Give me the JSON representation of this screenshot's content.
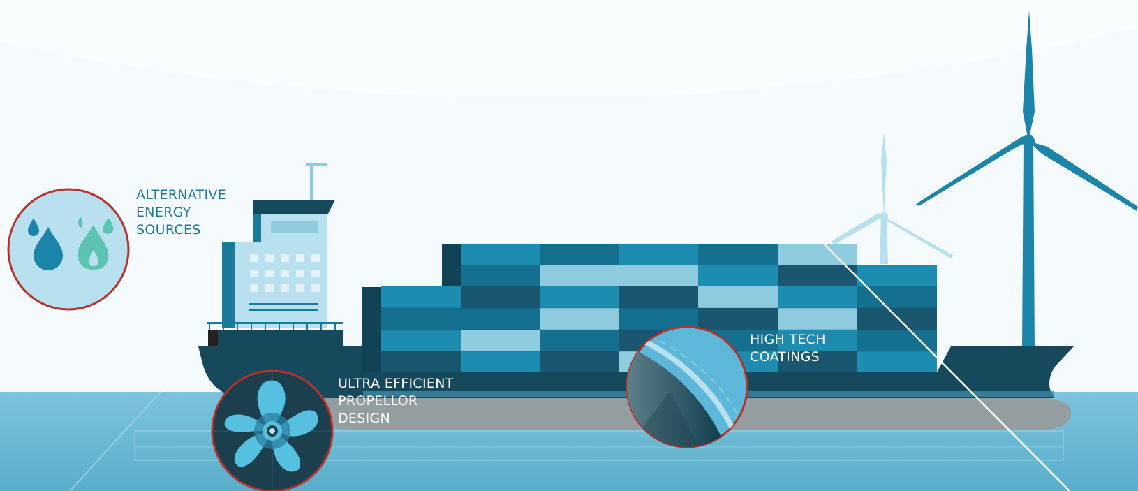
{
  "colors": {
    "sky": "#f5fafc",
    "sea": "#6ab8d4",
    "hull": "#16495c",
    "hull_bottom": "#949ea0",
    "label_dark": "#1c7a96",
    "label_light": "#ffffff",
    "callout_ring": "#b7322c",
    "turbine": "#1a85a8",
    "turbine_far": "#b8dfee"
  },
  "labels": {
    "energy": {
      "lines": [
        "ALTERNATIVE",
        "ENERGY",
        "SOURCES"
      ]
    },
    "propeller": {
      "lines": [
        "ULTRA EFFICIENT",
        "PROPELLOR",
        "DESIGN"
      ]
    },
    "coatings": {
      "lines": [
        "HIGH TECH",
        "COATINGS"
      ]
    }
  },
  "icons": {
    "energy_callout": [
      "water-drop-icon",
      "flame-icon"
    ],
    "propeller_callout": "propeller-icon",
    "coating_callout": "hull-coating-icon"
  }
}
